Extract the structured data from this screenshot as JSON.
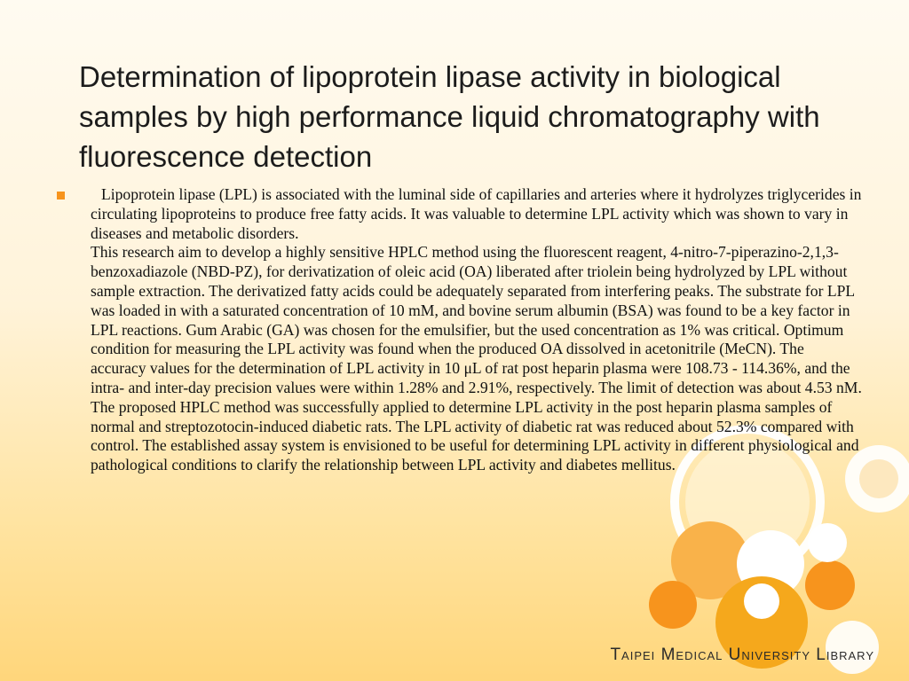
{
  "title": "Determination of lipoprotein lipase activity in biological samples by high performance liquid chromatography with fluorescence detection",
  "bullet_icon": "square-bullet-icon",
  "paragraphs": [
    "Lipoprotein lipase (LPL) is associated with the luminal side of capillaries and arteries where it hydrolyzes triglycerides in circulating lipoproteins to produce free fatty acids. It was valuable to determine LPL activity which was shown to vary in diseases and metabolic disorders.",
    "This research aim to develop a highly sensitive HPLC method using the fluorescent reagent, 4-nitro-7-piperazino-2,1,3-benzoxadiazole (NBD-PZ), for derivatization of oleic acid (OA) liberated after triolein being hydrolyzed by LPL without sample extraction. The derivatized fatty acids could be adequately separated from interfering peaks. The substrate for LPL was loaded in with a saturated concentration of 10 mM, and bovine serum albumin (BSA) was found to be a key factor in LPL reactions. Gum Arabic (GA) was chosen for the emulsifier, but the used concentration as 1% was critical. Optimum condition for measuring the LPL activity was found when the produced OA dissolved in acetonitrile (MeCN). The accuracy values for the determination of LPL activity in 10 μL of rat post heparin plasma were 108.73 - 114.36%, and the intra- and inter-day precision values were within 1.28% and 2.91%, respectively. The limit of detection was about 4.53 nM.",
    "The proposed HPLC method was successfully applied to determine LPL activity in the post heparin plasma samples of normal and streptozotocin-induced diabetic rats. The LPL activity of diabetic rat was reduced about 52.3% compared with control. The established assay system is envisioned to be useful for determining LPL activity in different physiological and pathological conditions to clarify the relationship between LPL activity and diabetes mellitus."
  ],
  "footer": "Taipei Medical University Library",
  "colors": {
    "accent_orange": "#f7941d",
    "light_orange": "#f9b24a",
    "gold": "#f5a81c",
    "white": "#ffffff"
  }
}
